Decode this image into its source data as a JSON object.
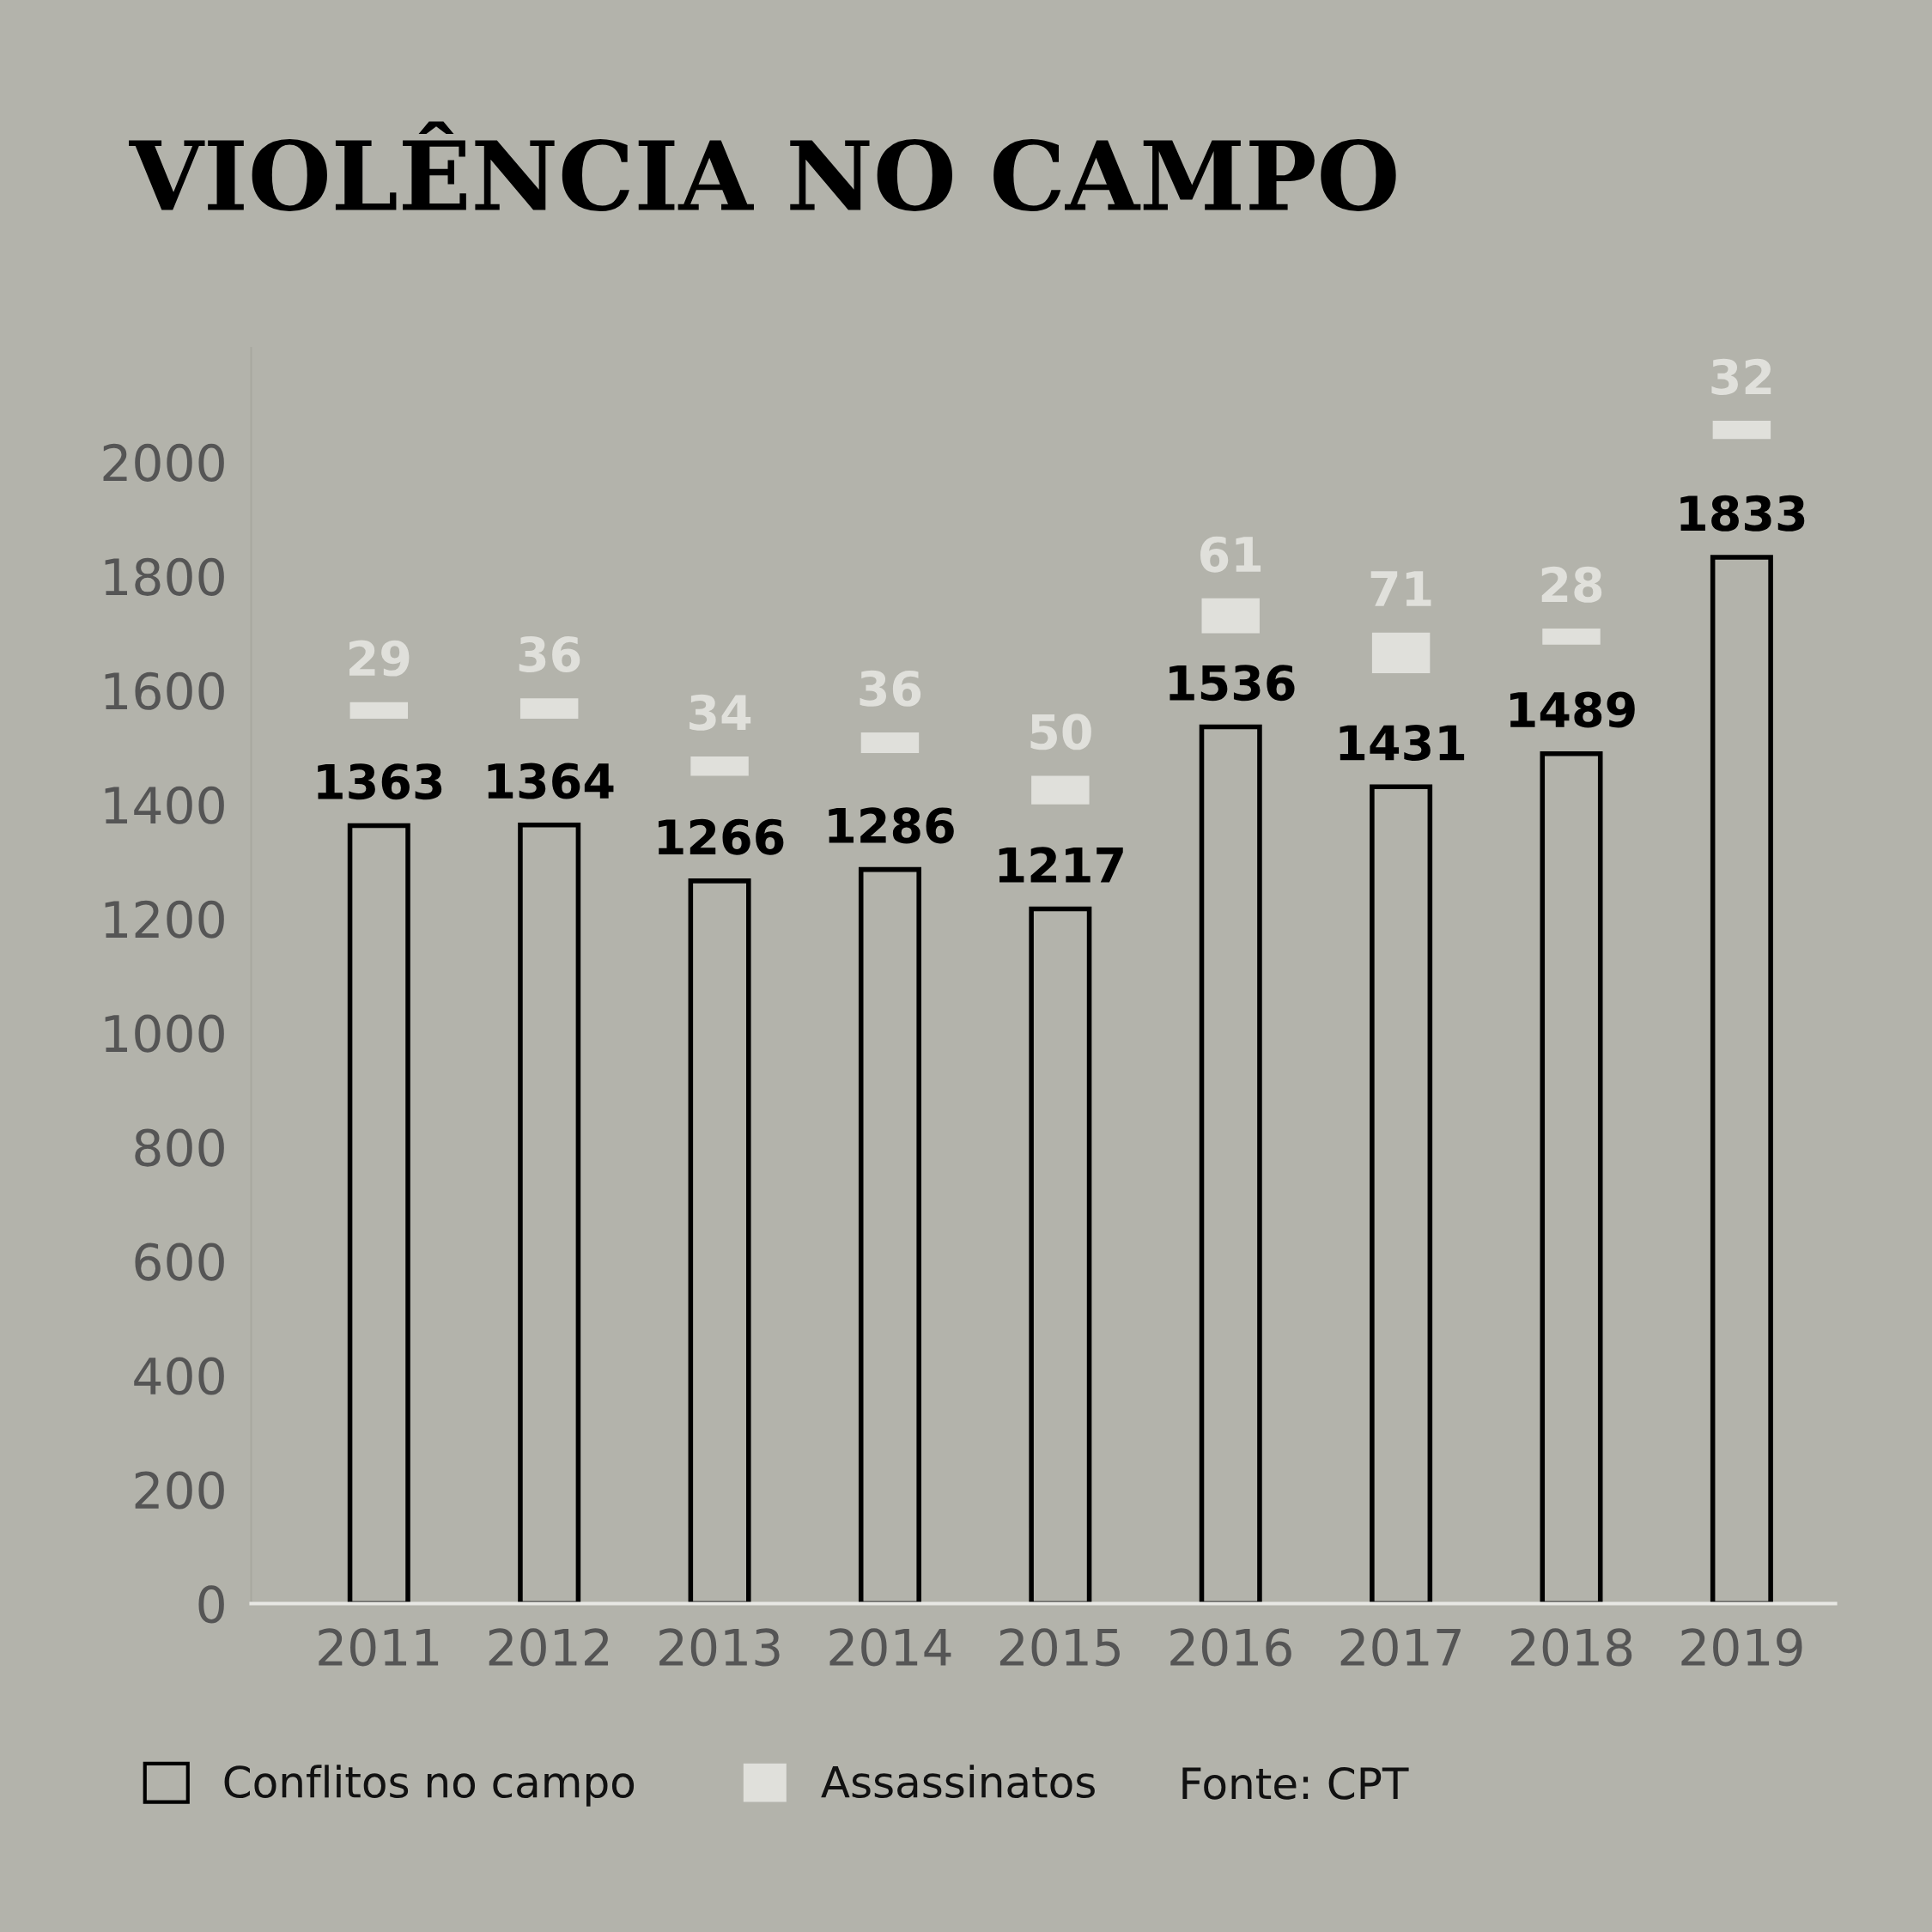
{
  "chart_data": {
    "type": "bar",
    "title": "VIOLÊNCIA NO CAMPO",
    "categories": [
      "2011",
      "2012",
      "2013",
      "2014",
      "2015",
      "2016",
      "2017",
      "2018",
      "2019"
    ],
    "series": [
      {
        "name": "Conflitos no campo",
        "color": "#000000",
        "values": [
          1363,
          1364,
          1266,
          1286,
          1217,
          1536,
          1431,
          1489,
          1833
        ]
      },
      {
        "name": "Assassinatos",
        "color": "#e0e0db",
        "values": [
          29,
          36,
          34,
          36,
          50,
          61,
          71,
          28,
          32
        ],
        "base": [
          1550,
          1550,
          1450,
          1490,
          1400,
          1700,
          1630,
          1680,
          2040
        ]
      }
    ],
    "ylim": [
      0,
      2200
    ],
    "yticks": [
      0,
      200,
      400,
      600,
      800,
      1000,
      1200,
      1400,
      1600,
      1800,
      2000
    ],
    "data_labels": true,
    "grid": false,
    "legend": "bottom",
    "annotations": [
      "Fonte: CPT"
    ]
  }
}
